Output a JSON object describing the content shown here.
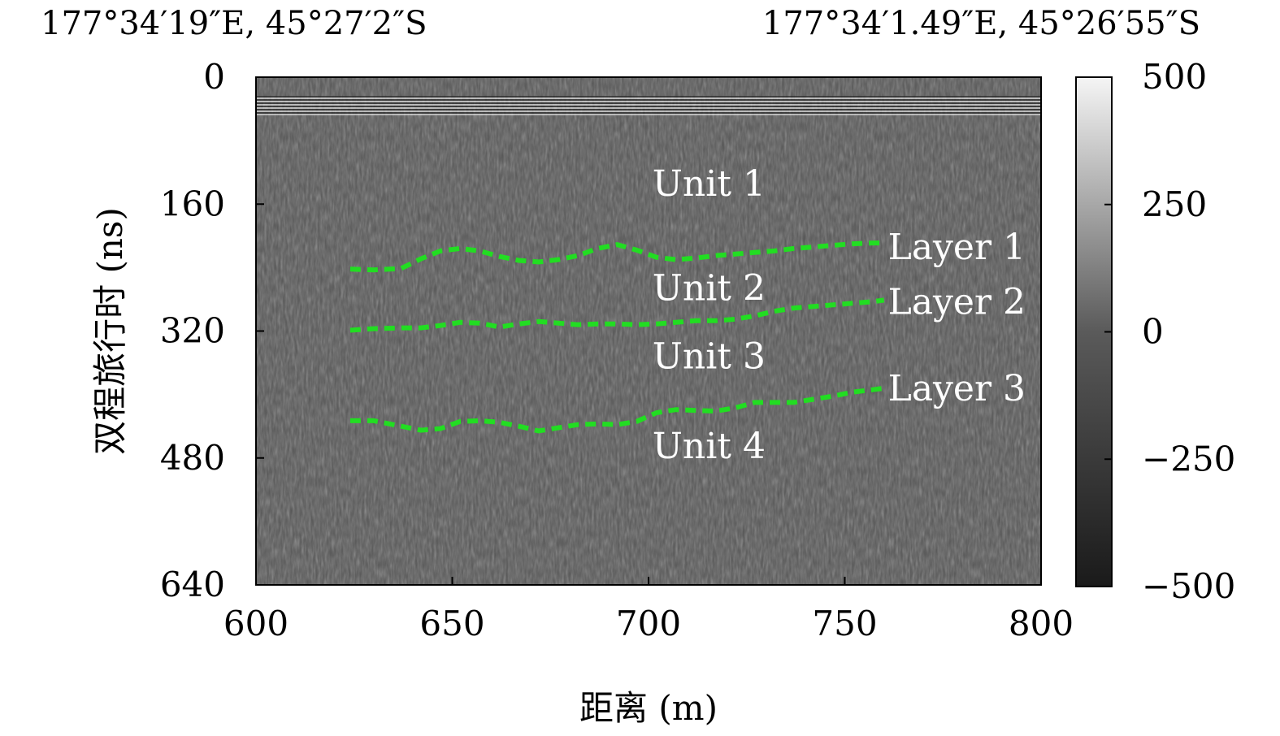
{
  "coords": {
    "start": "177°34′19″E, 45°27′2″S",
    "end": "177°34′1.49″E, 45°26′55″S"
  },
  "chart_data": {
    "type": "heatmap",
    "title": "",
    "xlabel": "距离 (m)",
    "ylabel": "双程旅行时 (ns)",
    "xlim": [
      600,
      800
    ],
    "ylim": [
      640,
      0
    ],
    "x_ticks": [
      "600",
      "650",
      "700",
      "750",
      "800"
    ],
    "y_ticks": [
      "0",
      "160",
      "320",
      "480",
      "640"
    ],
    "colorbar": {
      "range": [
        -500,
        500
      ],
      "ticks": [
        "500",
        "250",
        "0",
        "−250",
        "−500"
      ],
      "colormap": "grayscale"
    },
    "image": "GPR radargram, grayscale amplitude",
    "series": [
      {
        "name": "Layer 1",
        "color": "#22dd22",
        "style": "dashed",
        "x": [
          624,
          630,
          637,
          642,
          647,
          652,
          657,
          662,
          667,
          672,
          677,
          682,
          687,
          692,
          697,
          702,
          707,
          712,
          717,
          722,
          727,
          732,
          737,
          742,
          747,
          752,
          757,
          760
        ],
        "y": [
          242,
          243,
          241,
          229,
          219,
          216,
          219,
          226,
          231,
          233,
          230,
          225,
          216,
          211,
          218,
          227,
          230,
          228,
          225,
          223,
          221,
          219,
          216,
          214,
          212,
          210,
          209,
          209
        ]
      },
      {
        "name": "Layer 2",
        "color": "#22dd22",
        "style": "dashed",
        "x": [
          624,
          630,
          637,
          642,
          647,
          652,
          657,
          662,
          667,
          672,
          677,
          682,
          687,
          692,
          697,
          702,
          707,
          712,
          717,
          722,
          727,
          732,
          737,
          742,
          747,
          752,
          757,
          760
        ],
        "y": [
          319,
          317,
          316,
          316,
          313,
          309,
          310,
          315,
          311,
          308,
          310,
          312,
          311,
          311,
          312,
          311,
          309,
          307,
          307,
          305,
          301,
          295,
          291,
          289,
          287,
          285,
          283,
          281
        ]
      },
      {
        "name": "Layer 3",
        "color": "#22dd22",
        "style": "dashed",
        "x": [
          624,
          630,
          637,
          642,
          647,
          652,
          657,
          662,
          667,
          672,
          677,
          682,
          687,
          692,
          697,
          702,
          707,
          712,
          717,
          722,
          727,
          732,
          737,
          742,
          747,
          752,
          757,
          760
        ],
        "y": [
          433,
          433,
          440,
          445,
          443,
          434,
          433,
          435,
          440,
          446,
          442,
          438,
          437,
          438,
          434,
          423,
          419,
          420,
          421,
          417,
          410,
          410,
          410,
          406,
          402,
          397,
          394,
          392
        ]
      }
    ],
    "annotations": [
      {
        "text": "Unit 1",
        "x": 701,
        "y": 135
      },
      {
        "text": "Unit 2",
        "x": 701,
        "y": 267
      },
      {
        "text": "Unit 3",
        "x": 701,
        "y": 353
      },
      {
        "text": "Unit 4",
        "x": 701,
        "y": 466
      },
      {
        "text": "Layer 1",
        "x": 761,
        "y": 215
      },
      {
        "text": "Layer 2",
        "x": 761,
        "y": 284
      },
      {
        "text": "Layer 3",
        "x": 761,
        "y": 393
      }
    ]
  }
}
